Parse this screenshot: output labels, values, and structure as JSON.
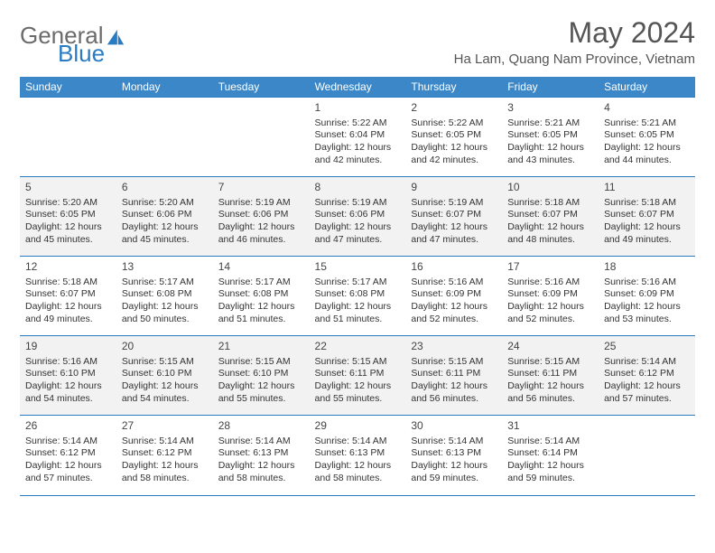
{
  "logo": {
    "part1": "General",
    "part2": "Blue"
  },
  "title": "May 2024",
  "location": "Ha Lam, Quang Nam Province, Vietnam",
  "colors": {
    "header_bg": "#3b87c8",
    "rule": "#2a7cc2",
    "alt_row_bg": "#f2f2f2",
    "text": "#333333",
    "logo_gray": "#6b6b6b",
    "logo_blue": "#2a7cc2"
  },
  "dayNames": [
    "Sunday",
    "Monday",
    "Tuesday",
    "Wednesday",
    "Thursday",
    "Friday",
    "Saturday"
  ],
  "grid": {
    "columns": 7,
    "rows": 5,
    "first_weekday_index": 3
  },
  "days": [
    {
      "n": "1",
      "sunrise": "5:22 AM",
      "sunset": "6:04 PM",
      "daylight": "12 hours and 42 minutes."
    },
    {
      "n": "2",
      "sunrise": "5:22 AM",
      "sunset": "6:05 PM",
      "daylight": "12 hours and 42 minutes."
    },
    {
      "n": "3",
      "sunrise": "5:21 AM",
      "sunset": "6:05 PM",
      "daylight": "12 hours and 43 minutes."
    },
    {
      "n": "4",
      "sunrise": "5:21 AM",
      "sunset": "6:05 PM",
      "daylight": "12 hours and 44 minutes."
    },
    {
      "n": "5",
      "sunrise": "5:20 AM",
      "sunset": "6:05 PM",
      "daylight": "12 hours and 45 minutes."
    },
    {
      "n": "6",
      "sunrise": "5:20 AM",
      "sunset": "6:06 PM",
      "daylight": "12 hours and 45 minutes."
    },
    {
      "n": "7",
      "sunrise": "5:19 AM",
      "sunset": "6:06 PM",
      "daylight": "12 hours and 46 minutes."
    },
    {
      "n": "8",
      "sunrise": "5:19 AM",
      "sunset": "6:06 PM",
      "daylight": "12 hours and 47 minutes."
    },
    {
      "n": "9",
      "sunrise": "5:19 AM",
      "sunset": "6:07 PM",
      "daylight": "12 hours and 47 minutes."
    },
    {
      "n": "10",
      "sunrise": "5:18 AM",
      "sunset": "6:07 PM",
      "daylight": "12 hours and 48 minutes."
    },
    {
      "n": "11",
      "sunrise": "5:18 AM",
      "sunset": "6:07 PM",
      "daylight": "12 hours and 49 minutes."
    },
    {
      "n": "12",
      "sunrise": "5:18 AM",
      "sunset": "6:07 PM",
      "daylight": "12 hours and 49 minutes."
    },
    {
      "n": "13",
      "sunrise": "5:17 AM",
      "sunset": "6:08 PM",
      "daylight": "12 hours and 50 minutes."
    },
    {
      "n": "14",
      "sunrise": "5:17 AM",
      "sunset": "6:08 PM",
      "daylight": "12 hours and 51 minutes."
    },
    {
      "n": "15",
      "sunrise": "5:17 AM",
      "sunset": "6:08 PM",
      "daylight": "12 hours and 51 minutes."
    },
    {
      "n": "16",
      "sunrise": "5:16 AM",
      "sunset": "6:09 PM",
      "daylight": "12 hours and 52 minutes."
    },
    {
      "n": "17",
      "sunrise": "5:16 AM",
      "sunset": "6:09 PM",
      "daylight": "12 hours and 52 minutes."
    },
    {
      "n": "18",
      "sunrise": "5:16 AM",
      "sunset": "6:09 PM",
      "daylight": "12 hours and 53 minutes."
    },
    {
      "n": "19",
      "sunrise": "5:16 AM",
      "sunset": "6:10 PM",
      "daylight": "12 hours and 54 minutes."
    },
    {
      "n": "20",
      "sunrise": "5:15 AM",
      "sunset": "6:10 PM",
      "daylight": "12 hours and 54 minutes."
    },
    {
      "n": "21",
      "sunrise": "5:15 AM",
      "sunset": "6:10 PM",
      "daylight": "12 hours and 55 minutes."
    },
    {
      "n": "22",
      "sunrise": "5:15 AM",
      "sunset": "6:11 PM",
      "daylight": "12 hours and 55 minutes."
    },
    {
      "n": "23",
      "sunrise": "5:15 AM",
      "sunset": "6:11 PM",
      "daylight": "12 hours and 56 minutes."
    },
    {
      "n": "24",
      "sunrise": "5:15 AM",
      "sunset": "6:11 PM",
      "daylight": "12 hours and 56 minutes."
    },
    {
      "n": "25",
      "sunrise": "5:14 AM",
      "sunset": "6:12 PM",
      "daylight": "12 hours and 57 minutes."
    },
    {
      "n": "26",
      "sunrise": "5:14 AM",
      "sunset": "6:12 PM",
      "daylight": "12 hours and 57 minutes."
    },
    {
      "n": "27",
      "sunrise": "5:14 AM",
      "sunset": "6:12 PM",
      "daylight": "12 hours and 58 minutes."
    },
    {
      "n": "28",
      "sunrise": "5:14 AM",
      "sunset": "6:13 PM",
      "daylight": "12 hours and 58 minutes."
    },
    {
      "n": "29",
      "sunrise": "5:14 AM",
      "sunset": "6:13 PM",
      "daylight": "12 hours and 58 minutes."
    },
    {
      "n": "30",
      "sunrise": "5:14 AM",
      "sunset": "6:13 PM",
      "daylight": "12 hours and 59 minutes."
    },
    {
      "n": "31",
      "sunrise": "5:14 AM",
      "sunset": "6:14 PM",
      "daylight": "12 hours and 59 minutes."
    }
  ],
  "labels": {
    "sunrise": "Sunrise:",
    "sunset": "Sunset:",
    "daylight": "Daylight:"
  }
}
